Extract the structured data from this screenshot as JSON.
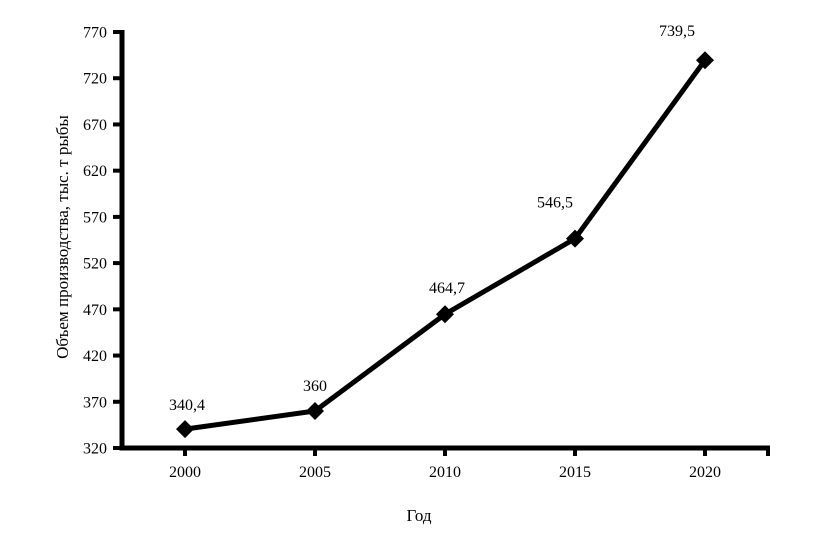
{
  "chart_data": {
    "type": "line",
    "categories": [
      "2000",
      "2005",
      "2010",
      "2015",
      "2020"
    ],
    "values": [
      340.4,
      360,
      464.7,
      546.5,
      739.5
    ],
    "point_labels": [
      "340,4",
      "360",
      "464,7",
      "546,5",
      "739,5"
    ],
    "title": "",
    "xlabel": "Год",
    "ylabel": "Объем производства, тыс. т рыбы",
    "ylim": [
      320,
      770
    ],
    "ytick_interval": 50,
    "yticks": [
      320,
      370,
      420,
      470,
      520,
      570,
      620,
      670,
      720,
      770
    ],
    "grid": false,
    "legend": "none",
    "marker": "diamond",
    "line_color": "#000000",
    "axis_color": "#000000",
    "background": "#ffffff"
  }
}
